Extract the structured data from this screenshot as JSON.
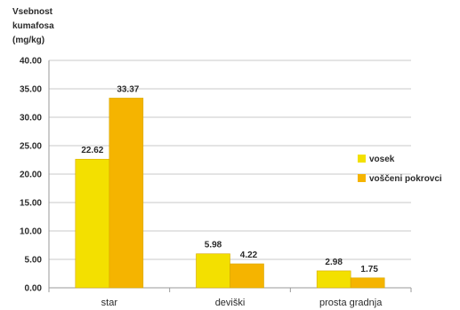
{
  "chart_data": {
    "type": "bar",
    "ylabel_lines": [
      "Vsebnost",
      "kumafosa",
      "(mg/kg)"
    ],
    "categories": [
      "star",
      "deviški",
      "prosta gradnja"
    ],
    "series": [
      {
        "name": "vosek",
        "values": [
          22.62,
          5.98,
          2.98
        ],
        "value_labels": [
          "22.62",
          "5.98",
          "2.98"
        ],
        "color": "#f3e000"
      },
      {
        "name": "voščeni pokrovci",
        "values": [
          33.37,
          4.22,
          1.75
        ],
        "value_labels": [
          "33.37",
          "4.22",
          "1.75"
        ],
        "color": "#f5b400"
      }
    ],
    "yticks": [
      "0.00",
      "5.00",
      "10.00",
      "15.00",
      "20.00",
      "25.00",
      "30.00",
      "35.00",
      "40.00"
    ],
    "ylim": [
      0,
      40
    ],
    "grid": true,
    "legend_position": "right"
  },
  "colors": {
    "grid": "#c8c8c8",
    "axis": "#9a9a9a",
    "text": "#2a2a2a"
  }
}
